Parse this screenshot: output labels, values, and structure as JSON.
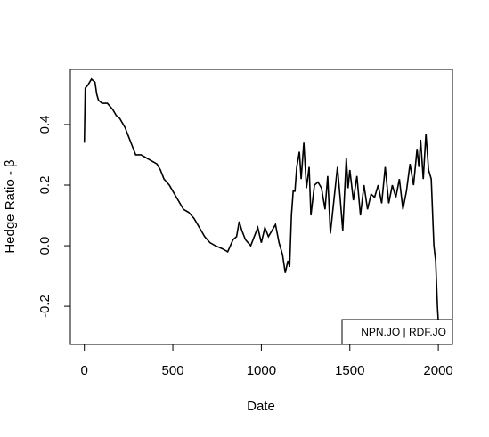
{
  "chart_data": {
    "type": "line",
    "xlabel": "Date",
    "ylabel": "Hedge Ratio - β",
    "x": [
      0,
      5,
      20,
      40,
      60,
      70,
      80,
      100,
      130,
      160,
      180,
      200,
      230,
      250,
      270,
      290,
      320,
      350,
      380,
      410,
      430,
      450,
      480,
      500,
      530,
      560,
      590,
      620,
      650,
      680,
      710,
      740,
      780,
      810,
      840,
      860,
      875,
      890,
      910,
      940,
      960,
      980,
      1000,
      1020,
      1040,
      1060,
      1080,
      1100,
      1120,
      1135,
      1150,
      1160,
      1170,
      1180,
      1190,
      1200,
      1215,
      1225,
      1240,
      1255,
      1270,
      1280,
      1290,
      1300,
      1320,
      1340,
      1360,
      1375,
      1390,
      1410,
      1430,
      1445,
      1460,
      1480,
      1490,
      1500,
      1520,
      1540,
      1560,
      1580,
      1600,
      1620,
      1640,
      1660,
      1680,
      1700,
      1720,
      1740,
      1760,
      1780,
      1800,
      1820,
      1840,
      1860,
      1880,
      1890,
      1900,
      1915,
      1930,
      1945,
      1960,
      1975,
      1985,
      1995,
      2000
    ],
    "series": [
      {
        "name": "NPN.JO | RDF.JO",
        "color": "#000000",
        "values": [
          0.34,
          0.52,
          0.53,
          0.55,
          0.54,
          0.5,
          0.48,
          0.47,
          0.47,
          0.45,
          0.43,
          0.42,
          0.39,
          0.36,
          0.33,
          0.3,
          0.3,
          0.29,
          0.28,
          0.27,
          0.25,
          0.22,
          0.2,
          0.18,
          0.15,
          0.12,
          0.11,
          0.09,
          0.06,
          0.03,
          0.01,
          0.0,
          -0.01,
          -0.02,
          0.02,
          0.03,
          0.08,
          0.05,
          0.02,
          0.0,
          0.03,
          0.06,
          0.01,
          0.06,
          0.03,
          0.05,
          0.07,
          0.01,
          -0.03,
          -0.09,
          -0.05,
          -0.07,
          0.1,
          0.18,
          0.18,
          0.26,
          0.31,
          0.22,
          0.34,
          0.19,
          0.26,
          0.1,
          0.15,
          0.2,
          0.21,
          0.19,
          0.12,
          0.23,
          0.04,
          0.15,
          0.26,
          0.16,
          0.05,
          0.29,
          0.19,
          0.25,
          0.15,
          0.23,
          0.1,
          0.2,
          0.12,
          0.17,
          0.16,
          0.2,
          0.14,
          0.26,
          0.14,
          0.2,
          0.16,
          0.22,
          0.12,
          0.18,
          0.27,
          0.2,
          0.32,
          0.26,
          0.35,
          0.22,
          0.37,
          0.25,
          0.22,
          0.0,
          -0.05,
          -0.2,
          -0.25
        ]
      }
    ],
    "xlim": [
      -79,
      2080
    ],
    "xticks": [
      0,
      500,
      1000,
      1500,
      2000
    ],
    "ylim": [
      -0.326,
      0.582
    ],
    "yticks": [
      -0.2,
      {
        "value": 0,
        "label": "0.0"
      },
      0.2,
      0.4
    ],
    "legend": "bottomright"
  }
}
